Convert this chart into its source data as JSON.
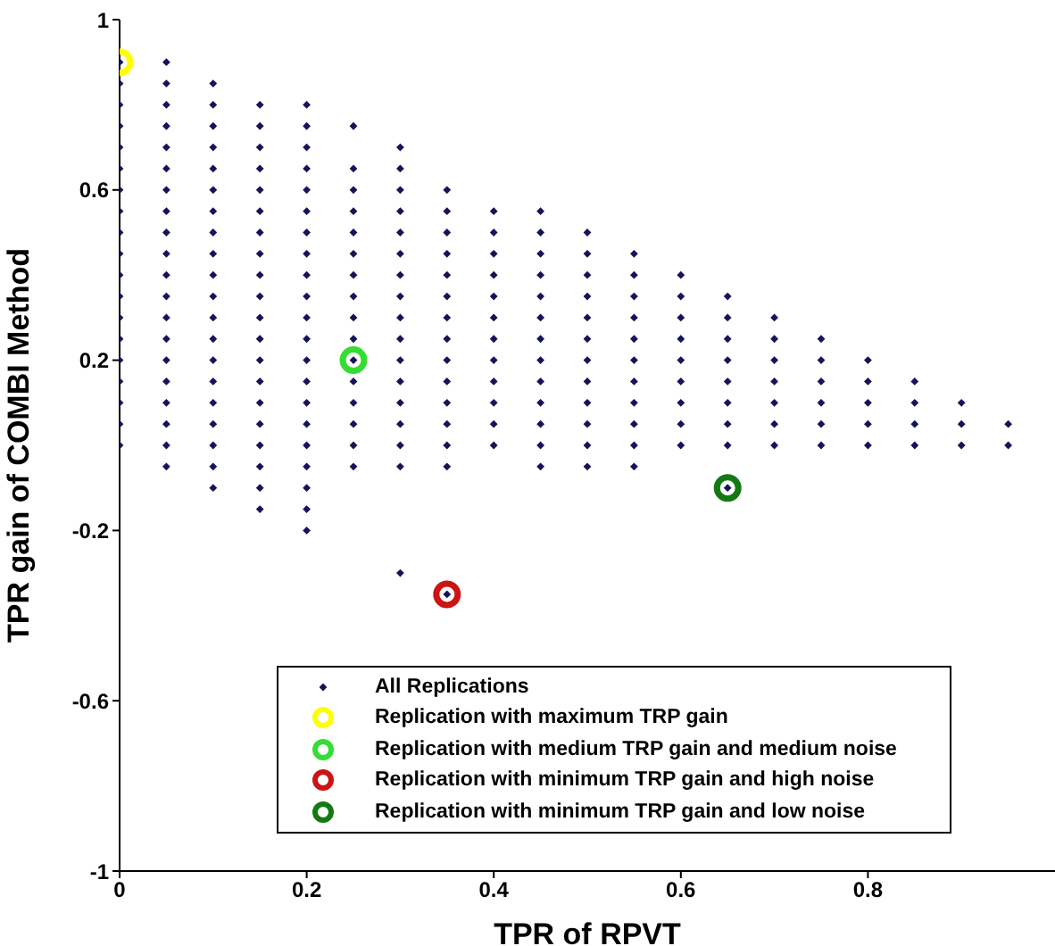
{
  "chart_data": {
    "type": "scatter",
    "xlabel": "TPR of RPVT",
    "ylabel": "TPR gain of COMBI Method",
    "xlim": [
      0,
      1
    ],
    "xticks": [
      0,
      0.2,
      0.4,
      0.6,
      0.8
    ],
    "ylim": [
      -1,
      1
    ],
    "yticks": [
      -1,
      -0.6,
      -0.2,
      0.2,
      0.6,
      1
    ],
    "grid": false,
    "legend": "bottom",
    "series": [
      {
        "name": "All Replications",
        "color": "#14145a",
        "marker": "diamond",
        "x": [
          0,
          0,
          0,
          0,
          0,
          0,
          0,
          0,
          0,
          0,
          0,
          0,
          0,
          0,
          0,
          0,
          0,
          0,
          0,
          0.05,
          0.05,
          0.05,
          0.05,
          0.05,
          0.05,
          0.05,
          0.05,
          0.05,
          0.05,
          0.05,
          0.05,
          0.05,
          0.05,
          0.05,
          0.05,
          0.05,
          0.05,
          0.05,
          0.05,
          0.1,
          0.1,
          0.1,
          0.1,
          0.1,
          0.1,
          0.1,
          0.1,
          0.1,
          0.1,
          0.1,
          0.1,
          0.1,
          0.1,
          0.1,
          0.1,
          0.1,
          0.1,
          0.1,
          0.1,
          0.15,
          0.15,
          0.15,
          0.15,
          0.15,
          0.15,
          0.15,
          0.15,
          0.15,
          0.15,
          0.15,
          0.15,
          0.15,
          0.15,
          0.15,
          0.15,
          0.15,
          0.15,
          0.15,
          0.15,
          0.2,
          0.2,
          0.2,
          0.2,
          0.2,
          0.2,
          0.2,
          0.2,
          0.2,
          0.2,
          0.2,
          0.2,
          0.2,
          0.2,
          0.2,
          0.2,
          0.2,
          0.2,
          0.2,
          0.2,
          0.2,
          0.25,
          0.25,
          0.25,
          0.25,
          0.25,
          0.25,
          0.25,
          0.25,
          0.25,
          0.25,
          0.25,
          0.25,
          0.25,
          0.25,
          0.25,
          0.25,
          0.3,
          0.3,
          0.3,
          0.3,
          0.3,
          0.3,
          0.3,
          0.3,
          0.3,
          0.3,
          0.3,
          0.3,
          0.3,
          0.3,
          0.3,
          0.3,
          0.3,
          0.35,
          0.35,
          0.35,
          0.35,
          0.35,
          0.35,
          0.35,
          0.35,
          0.35,
          0.35,
          0.35,
          0.35,
          0.35,
          0.35,
          0.35,
          0.4,
          0.4,
          0.4,
          0.4,
          0.4,
          0.4,
          0.4,
          0.4,
          0.4,
          0.4,
          0.4,
          0.4,
          0.45,
          0.45,
          0.45,
          0.45,
          0.45,
          0.45,
          0.45,
          0.45,
          0.45,
          0.45,
          0.45,
          0.45,
          0.45,
          0.5,
          0.5,
          0.5,
          0.5,
          0.5,
          0.5,
          0.5,
          0.5,
          0.5,
          0.5,
          0.5,
          0.5,
          0.55,
          0.55,
          0.55,
          0.55,
          0.55,
          0.55,
          0.55,
          0.55,
          0.55,
          0.55,
          0.55,
          0.6,
          0.6,
          0.6,
          0.6,
          0.6,
          0.6,
          0.6,
          0.6,
          0.6,
          0.65,
          0.65,
          0.65,
          0.65,
          0.65,
          0.65,
          0.65,
          0.65,
          0.65,
          0.7,
          0.7,
          0.7,
          0.7,
          0.7,
          0.7,
          0.7,
          0.75,
          0.75,
          0.75,
          0.75,
          0.75,
          0.75,
          0.8,
          0.8,
          0.8,
          0.8,
          0.8,
          0.85,
          0.85,
          0.85,
          0.85,
          0.9,
          0.9,
          0.9,
          0.95,
          0.95
        ],
        "values": [
          0.9,
          0.85,
          0.8,
          0.75,
          0.7,
          0.65,
          0.6,
          0.55,
          0.5,
          0.45,
          0.4,
          0.35,
          0.3,
          0.25,
          0.2,
          0.15,
          0.1,
          0.05,
          0,
          0.9,
          0.85,
          0.8,
          0.75,
          0.7,
          0.65,
          0.6,
          0.55,
          0.5,
          0.45,
          0.4,
          0.35,
          0.3,
          0.25,
          0.2,
          0.15,
          0.1,
          0.05,
          0,
          -0.05,
          0.85,
          0.8,
          0.75,
          0.7,
          0.65,
          0.6,
          0.55,
          0.5,
          0.45,
          0.4,
          0.35,
          0.3,
          0.25,
          0.2,
          0.15,
          0.1,
          0.05,
          0,
          -0.05,
          -0.1,
          0.8,
          0.75,
          0.7,
          0.65,
          0.6,
          0.55,
          0.5,
          0.45,
          0.4,
          0.35,
          0.3,
          0.25,
          0.2,
          0.15,
          0.1,
          0.05,
          0,
          -0.05,
          -0.1,
          -0.15,
          0.8,
          0.75,
          0.7,
          0.65,
          0.6,
          0.55,
          0.5,
          0.45,
          0.4,
          0.35,
          0.3,
          0.25,
          0.2,
          0.15,
          0.1,
          0.05,
          0,
          -0.05,
          -0.1,
          -0.15,
          -0.2,
          0.75,
          0.65,
          0.6,
          0.55,
          0.5,
          0.45,
          0.4,
          0.35,
          0.3,
          0.25,
          0.2,
          0.15,
          0.1,
          0.05,
          0,
          -0.05,
          0.7,
          0.65,
          0.6,
          0.55,
          0.5,
          0.45,
          0.4,
          0.35,
          0.3,
          0.25,
          0.2,
          0.15,
          0.1,
          0.05,
          0,
          -0.05,
          -0.3,
          0.6,
          0.55,
          0.5,
          0.45,
          0.4,
          0.35,
          0.3,
          0.25,
          0.2,
          0.15,
          0.1,
          0.05,
          0,
          -0.05,
          -0.35,
          0.55,
          0.5,
          0.45,
          0.4,
          0.35,
          0.3,
          0.25,
          0.2,
          0.15,
          0.1,
          0.05,
          0,
          0.55,
          0.5,
          0.45,
          0.4,
          0.35,
          0.3,
          0.25,
          0.2,
          0.15,
          0.1,
          0.05,
          0,
          -0.05,
          0.5,
          0.45,
          0.4,
          0.35,
          0.3,
          0.25,
          0.2,
          0.15,
          0.1,
          0.05,
          0,
          -0.05,
          0.45,
          0.4,
          0.35,
          0.3,
          0.25,
          0.2,
          0.15,
          0.1,
          0.05,
          0,
          -0.05,
          0.4,
          0.35,
          0.3,
          0.25,
          0.2,
          0.15,
          0.1,
          0.05,
          0,
          0.35,
          0.3,
          0.25,
          0.2,
          0.15,
          0.1,
          0.05,
          0,
          -0.1,
          0.3,
          0.25,
          0.2,
          0.15,
          0.1,
          0.05,
          0,
          0.25,
          0.2,
          0.15,
          0.1,
          0.05,
          0,
          0.2,
          0.15,
          0.1,
          0.05,
          0,
          0.15,
          0.1,
          0.05,
          0,
          0.1,
          0.05,
          0,
          0.05,
          0
        ]
      },
      {
        "name": "Replication with maximum TRP gain",
        "color": "#ffff00",
        "marker": "circle",
        "x": [
          0
        ],
        "values": [
          0.9
        ]
      },
      {
        "name": "Replication with medium TRP gain and medium noise",
        "color": "#33dd33",
        "marker": "circle",
        "x": [
          0.25
        ],
        "values": [
          0.2
        ]
      },
      {
        "name": "Replication with minimum TRP gain and high noise",
        "color": "#cc1414",
        "marker": "circle",
        "x": [
          0.35
        ],
        "values": [
          -0.35
        ]
      },
      {
        "name": "Replication with minimum TRP gain and low noise",
        "color": "#137a13",
        "marker": "circle",
        "x": [
          0.65
        ],
        "values": [
          -0.1
        ]
      }
    ]
  }
}
